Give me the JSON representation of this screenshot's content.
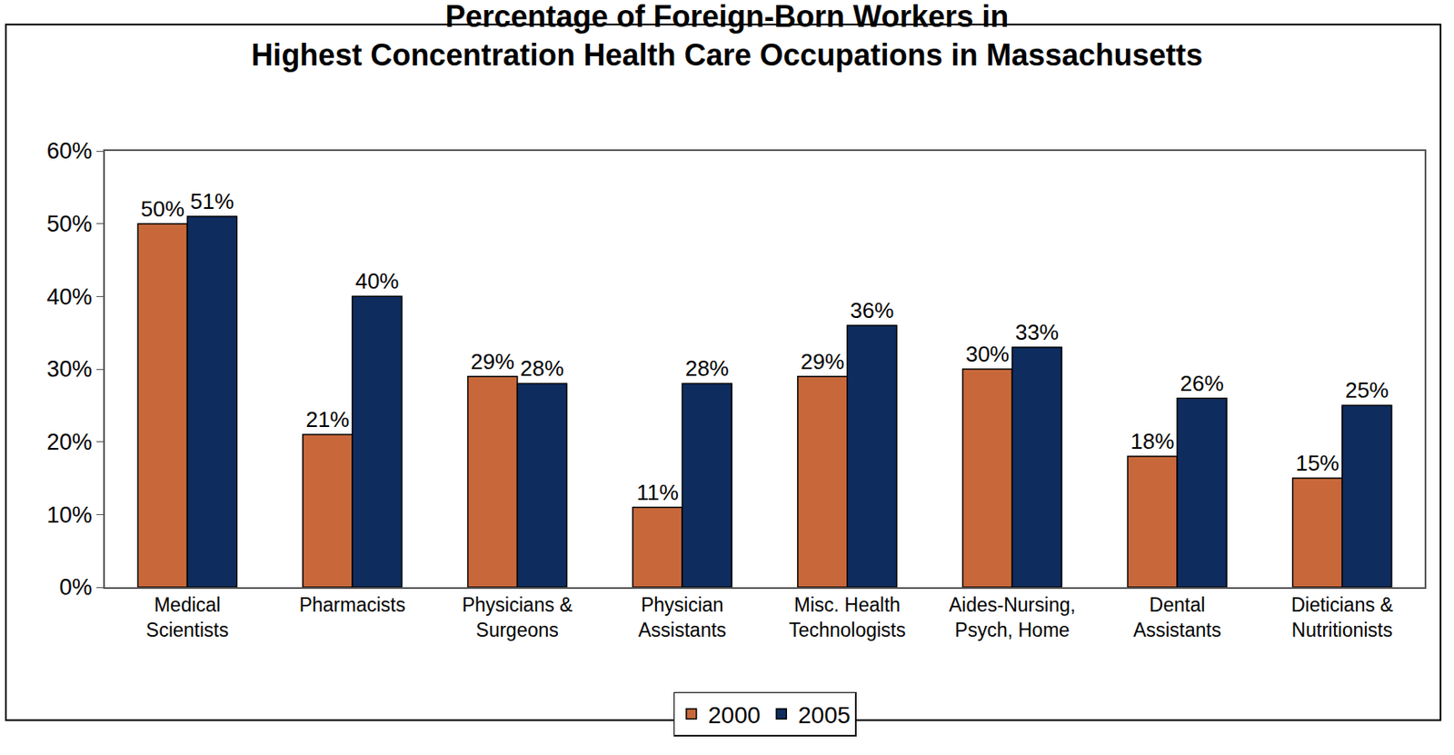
{
  "chart_data": {
    "type": "bar",
    "title": "Percentage of Foreign-Born Workers in\nHighest Concentration Health Care Occupations in Massachusetts",
    "categories": [
      "Medical\nScientists",
      "Pharmacists",
      "Physicians &\nSurgeons",
      "Physician\nAssistants",
      "Misc. Health\nTechnologists",
      "Aides-Nursing,\nPsych, Home",
      "Dental\nAssistants",
      "Dieticians &\nNutritionists"
    ],
    "series": [
      {
        "name": "2000",
        "color": "#C8683A",
        "values": [
          50,
          21,
          29,
          11,
          29,
          30,
          18,
          15
        ],
        "value_labels": [
          "50%",
          "21%",
          "29%",
          "11%",
          "29%",
          "30%",
          "18%",
          "15%"
        ]
      },
      {
        "name": "2005",
        "color": "#0E2C5E",
        "values": [
          51,
          40,
          28,
          28,
          36,
          33,
          26,
          25
        ],
        "value_labels": [
          "51%",
          "40%",
          "28%",
          "28%",
          "36%",
          "33%",
          "26%",
          "25%"
        ]
      }
    ],
    "ylim": [
      0,
      60
    ],
    "yticks": [
      {
        "value": 0,
        "label": "0%"
      },
      {
        "value": 10,
        "label": "10%"
      },
      {
        "value": 20,
        "label": "20%"
      },
      {
        "value": 30,
        "label": "30%"
      },
      {
        "value": 40,
        "label": "40%"
      },
      {
        "value": 50,
        "label": "50%"
      },
      {
        "value": 60,
        "label": "60%"
      }
    ],
    "grid": false,
    "legend": "bottom",
    "data_labels": true
  }
}
